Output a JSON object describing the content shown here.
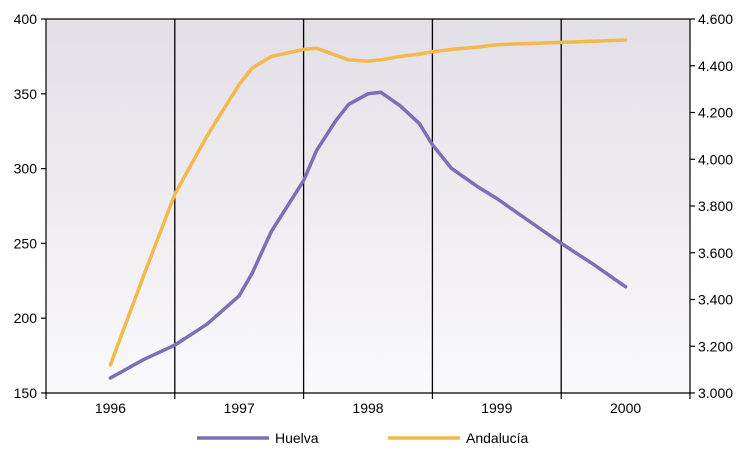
{
  "chart_data": {
    "type": "line",
    "categories": [
      "1996",
      "1997",
      "1998",
      "1999",
      "2000"
    ],
    "left_axis": {
      "ticks": [
        "150",
        "200",
        "250",
        "300",
        "350",
        "400"
      ],
      "ylim": [
        150,
        400
      ]
    },
    "right_axis": {
      "ticks": [
        "3.000",
        "3.200",
        "3.400",
        "3.600",
        "3.800",
        "4.000",
        "4.200",
        "4.400",
        "4.600"
      ],
      "ylim": [
        3000,
        4600
      ]
    },
    "grid": "vertical",
    "legend_position": "bottom",
    "series": [
      {
        "name": "Huelva",
        "axis": "left",
        "color": "#7b6fb5",
        "points": [
          [
            1996.0,
            160
          ],
          [
            1996.25,
            172
          ],
          [
            1996.5,
            182
          ],
          [
            1996.75,
            196
          ],
          [
            1997.0,
            215
          ],
          [
            1997.1,
            230
          ],
          [
            1997.25,
            258
          ],
          [
            1997.5,
            292
          ],
          [
            1997.6,
            312
          ],
          [
            1997.75,
            332
          ],
          [
            1997.85,
            343
          ],
          [
            1998.0,
            350
          ],
          [
            1998.1,
            351
          ],
          [
            1998.25,
            342
          ],
          [
            1998.4,
            330
          ],
          [
            1998.5,
            316
          ],
          [
            1998.65,
            300
          ],
          [
            1998.85,
            288
          ],
          [
            1999.0,
            280
          ],
          [
            1999.25,
            265
          ],
          [
            1999.5,
            250
          ],
          [
            1999.75,
            236
          ],
          [
            2000.0,
            221
          ]
        ]
      },
      {
        "name": "Andalucía",
        "axis": "right",
        "color": "#f3b94d",
        "points": [
          [
            1996.0,
            3120
          ],
          [
            1996.25,
            3490
          ],
          [
            1996.5,
            3850
          ],
          [
            1996.75,
            4100
          ],
          [
            1997.0,
            4320
          ],
          [
            1997.1,
            4390
          ],
          [
            1997.25,
            4440
          ],
          [
            1997.5,
            4470
          ],
          [
            1997.6,
            4475
          ],
          [
            1997.75,
            4445
          ],
          [
            1997.85,
            4425
          ],
          [
            1998.0,
            4420
          ],
          [
            1998.1,
            4425
          ],
          [
            1998.25,
            4440
          ],
          [
            1998.4,
            4450
          ],
          [
            1998.5,
            4460
          ],
          [
            1998.65,
            4470
          ],
          [
            1998.85,
            4480
          ],
          [
            1999.0,
            4490
          ],
          [
            1999.25,
            4495
          ],
          [
            1999.5,
            4500
          ],
          [
            1999.75,
            4505
          ],
          [
            2000.0,
            4510
          ]
        ]
      }
    ]
  }
}
